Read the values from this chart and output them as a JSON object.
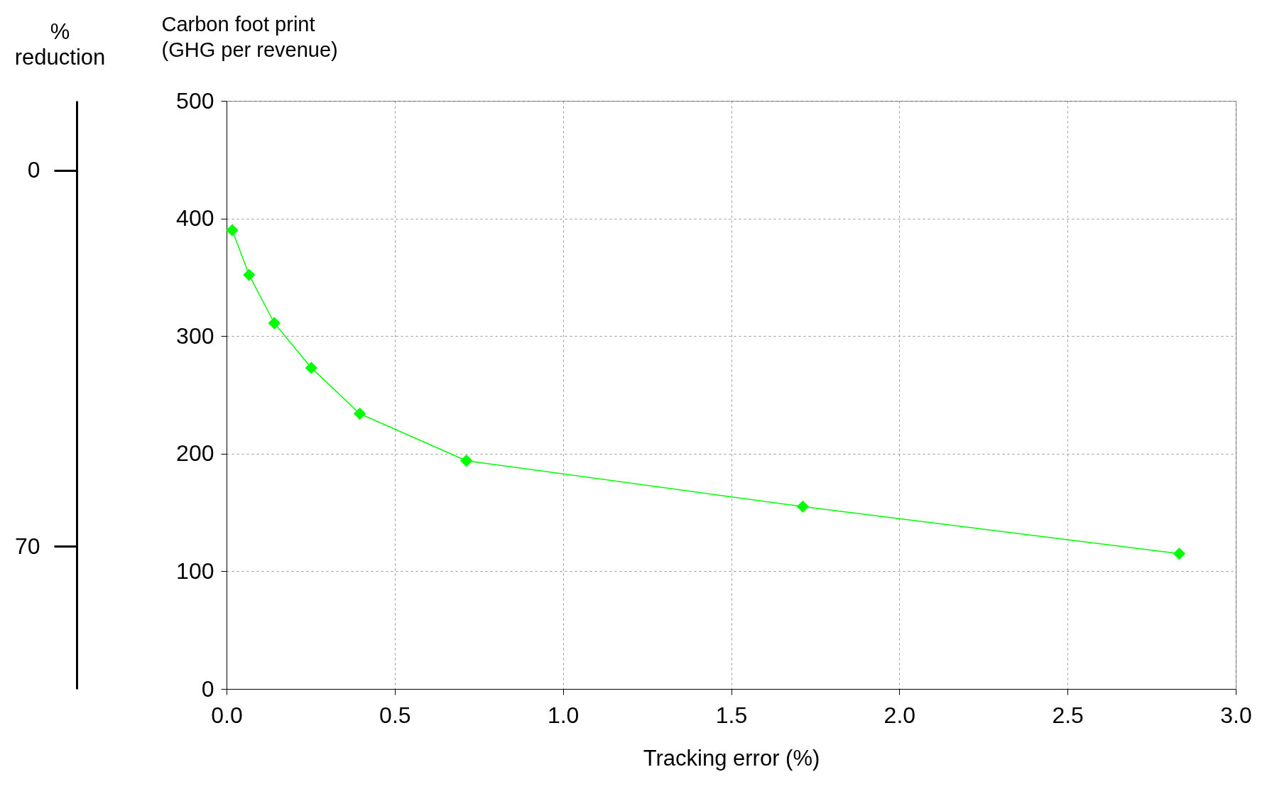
{
  "chart_data": {
    "type": "line",
    "xlabel": "Tracking error (%)",
    "ylabel": "Carbon foot print\n(GHG per revenue)",
    "y2label": "%\nreduction",
    "x": [
      0.017,
      0.067,
      0.142,
      0.252,
      0.396,
      0.713,
      1.713,
      2.832
    ],
    "series": [
      {
        "color": "#00ff00",
        "values": [
          390,
          352,
          311,
          273,
          234,
          194,
          155,
          115
        ]
      }
    ],
    "xlim": [
      0,
      3
    ],
    "xticks": [
      {
        "value": 0,
        "label": "0.0"
      },
      0.5,
      {
        "value": 1,
        "label": "1.0"
      },
      1.5,
      {
        "value": 2,
        "label": "2.0"
      },
      2.5,
      {
        "value": 3,
        "label": "3.0"
      }
    ],
    "ylim": [
      0,
      500
    ],
    "yticks": [
      0,
      100,
      200,
      300,
      400,
      500
    ],
    "y2lim": [
      96.5,
      -12.9
    ],
    "y2ticks": [
      0,
      70
    ],
    "grid": true,
    "marker": "diamond",
    "line_style": "solid"
  }
}
